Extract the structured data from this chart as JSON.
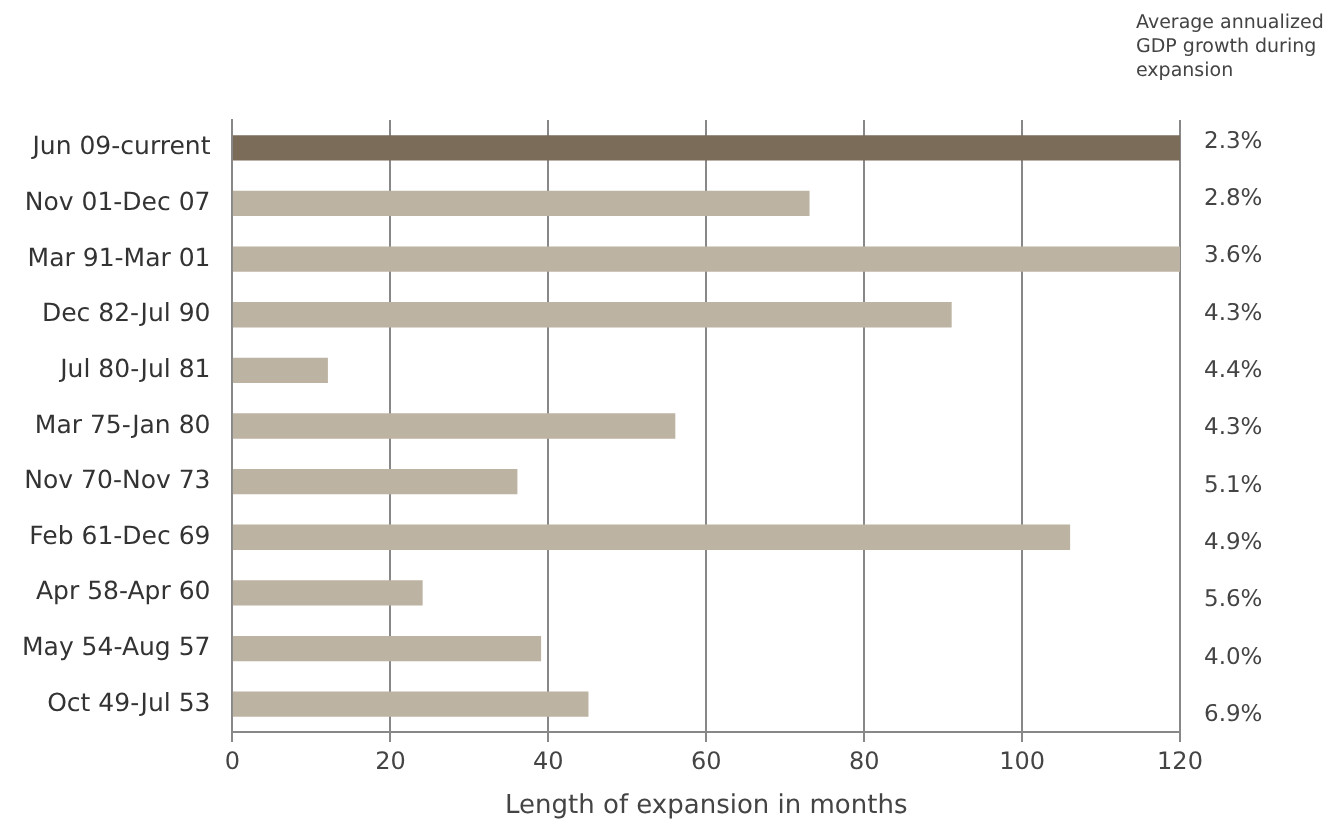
{
  "chart_data": {
    "type": "bar",
    "orientation": "horizontal",
    "xlabel": "Length of expansion in months",
    "categories": [
      "Jun 09-current",
      "Nov 01-Dec 07",
      "Mar 91-Mar 01",
      "Dec 82-Jul 90",
      "Jul 80-Jul 81",
      "Mar 75-Jan 80",
      "Nov 70-Nov 73",
      "Feb 61-Dec 69",
      "Apr 58-Apr 60",
      "May 54-Aug 57",
      "Oct 49-Jul 53"
    ],
    "values": [
      120,
      73,
      120,
      91,
      12,
      56,
      36,
      106,
      24,
      39,
      45
    ],
    "colors": [
      "#7b6b59",
      "#bdb3a2",
      "#bdb3a2",
      "#bdb3a2",
      "#bdb3a2",
      "#bdb3a2",
      "#bdb3a2",
      "#bdb3a2",
      "#bdb3a2",
      "#bdb3a2",
      "#bdb3a2"
    ],
    "xlim": [
      0,
      120
    ],
    "xticks": [
      0,
      20,
      40,
      60,
      80,
      100,
      120
    ],
    "grid": "x",
    "legend": false,
    "annotations": [
      "Average annualized GDP growth during expansion",
      "2.3%",
      "2.8%",
      "3.6%",
      "4.3%",
      "4.4%",
      "4.3%",
      "5.1%",
      "4.9%",
      "5.6%",
      "4.0%",
      "6.9%"
    ]
  }
}
